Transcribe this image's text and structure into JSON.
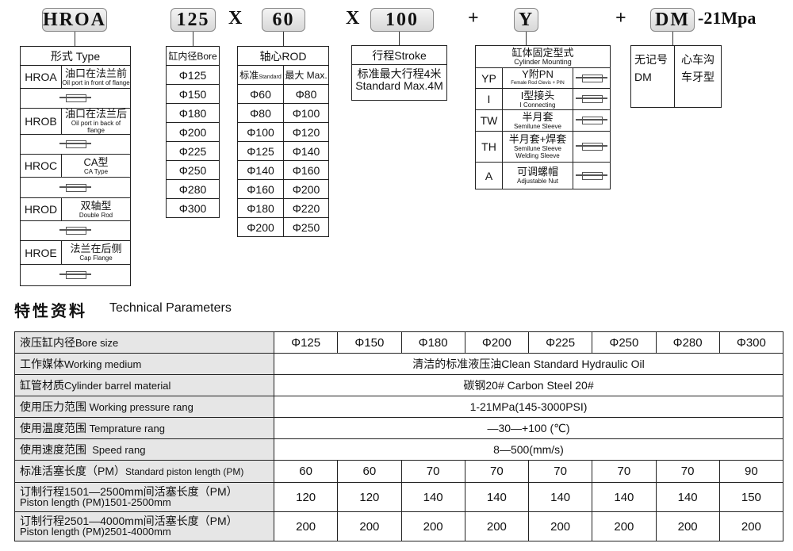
{
  "model_code": {
    "type": "HROA",
    "bore": "125",
    "x1": "X",
    "rod": "60",
    "x2": "X",
    "stroke": "100",
    "plus1": "+",
    "mount": "Y",
    "plus2": "+",
    "thread": "DM",
    "pressure": "-21Mpa"
  },
  "type_table": {
    "header": "形式 Type",
    "rows": [
      {
        "code": "HROA",
        "cn": "油口在法兰前",
        "en": "Oil port in front of flange"
      },
      {
        "code": "HROB",
        "cn": "油口在法兰后",
        "en": "Oil port in back of flange"
      },
      {
        "code": "HROC",
        "cn": "CA型",
        "en": "CA Type"
      },
      {
        "code": "HROD",
        "cn": "双轴型",
        "en": "Double Rod"
      },
      {
        "code": "HROE",
        "cn": "法兰在后侧",
        "en": "Cap Flange"
      }
    ]
  },
  "bore_table": {
    "header": "缸内径Bore",
    "values": [
      "Φ125",
      "Φ150",
      "Φ180",
      "Φ200",
      "Φ225",
      "Φ250",
      "Φ280",
      "Φ300"
    ]
  },
  "rod_table": {
    "header": "轴心ROD",
    "sub_standard_cn": "标准",
    "sub_standard_en": "Standard",
    "sub_max": "最大 Max.",
    "rows": [
      [
        "Φ60",
        "Φ80"
      ],
      [
        "Φ80",
        "Φ100"
      ],
      [
        "Φ100",
        "Φ120"
      ],
      [
        "Φ125",
        "Φ140"
      ],
      [
        "Φ140",
        "Φ160"
      ],
      [
        "Φ160",
        "Φ200"
      ],
      [
        "Φ180",
        "Φ220"
      ],
      [
        "Φ200",
        "Φ250"
      ]
    ]
  },
  "stroke_table": {
    "header": "行程Stroke",
    "line1": "标准最大行程4米",
    "line2": "Standard Max.4M"
  },
  "mount_table": {
    "header_cn": "缸体固定型式",
    "header_en": "Cylinder Mounting",
    "rows": [
      {
        "code": "YP",
        "cn": "Y附PN",
        "en": "Female Rod Clevis + PIN",
        "en2": ""
      },
      {
        "code": "I",
        "cn": "I型接头",
        "en": "I Connecting",
        "en2": ""
      },
      {
        "code": "TW",
        "cn": "半月套",
        "en": "Semilune Sleeve",
        "en2": ""
      },
      {
        "code": "TH",
        "cn": "半月套+焊套",
        "en": "Semilune Sleeve",
        "en2": "Welding Sleeve"
      },
      {
        "code": "A",
        "cn": "可调螺帽",
        "en": "Adjustable Nut",
        "en2": ""
      }
    ]
  },
  "thread_table": {
    "left1": "无记号",
    "left2": "DM",
    "right1": "心车沟",
    "right2": "车牙型"
  },
  "tech": {
    "title_cn": "特性资料",
    "title_en": "Technical Parameters",
    "bore_label": "液压缸内径",
    "bore_label_en": "Bore size",
    "bores": [
      "Φ125",
      "Φ150",
      "Φ180",
      "Φ200",
      "Φ225",
      "Φ250",
      "Φ280",
      "Φ300"
    ],
    "span_rows": [
      {
        "cn": "工作媒体",
        "en": "Working medium",
        "value": "清洁的标准液压油Clean Standard Hydraulic Oil"
      },
      {
        "cn": "缸管材质",
        "en": "Cylinder barrel material",
        "value": "碳钢20# Carbon Steel 20#"
      },
      {
        "cn": "使用压力范围",
        "en": " Working pressure rang",
        "value": "1-21MPa(145-3000PSI)"
      },
      {
        "cn": "使用温度范围",
        "en": " Temprature rang",
        "value": "—30—+100 (℃)"
      },
      {
        "cn": "使用速度范围",
        "en": "  Speed rang",
        "value": "8—500(mm/s)"
      }
    ],
    "pm_rows": [
      {
        "cn": "标准活塞长度（PM）",
        "en": "Standard piston length (PM)",
        "values": [
          "60",
          "60",
          "70",
          "70",
          "70",
          "70",
          "70",
          "90"
        ]
      },
      {
        "cn": "订制行程1501—2500mm间活塞长度（PM）",
        "en": "Piston length (PM)1501-2500mm",
        "values": [
          "120",
          "120",
          "140",
          "140",
          "140",
          "140",
          "140",
          "150"
        ]
      },
      {
        "cn": "订制行程2501—4000mm间活塞长度（PM）",
        "en": "Piston length (PM)2501-4000mm",
        "values": [
          "200",
          "200",
          "200",
          "200",
          "200",
          "200",
          "200",
          "200"
        ]
      }
    ]
  }
}
